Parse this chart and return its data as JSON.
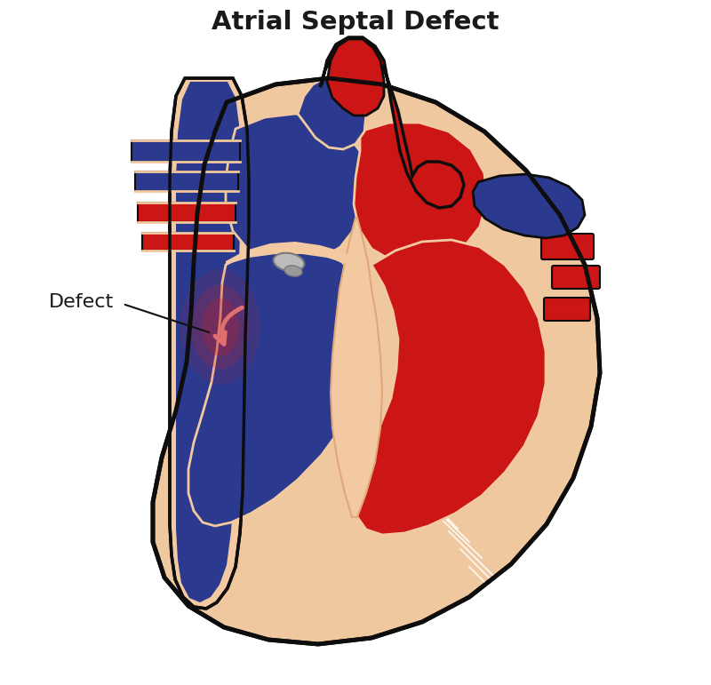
{
  "title": "Atrial Septal Defect",
  "title_fontsize": 21,
  "title_fontweight": "bold",
  "title_color": "#1a1a1a",
  "bg_color": "#ffffff",
  "colors": {
    "dark_blue": "#2B3A8E",
    "medium_blue": "#3D52A0",
    "bright_red": "#CC1515",
    "skin": "#F2C9A0",
    "skin_dark": "#E0A878",
    "outline": "#0D0D0D",
    "gray": "#7A7A7A",
    "light_gray": "#BBBBBB",
    "pink_arrow": "#E08080",
    "white": "#FFFFFF",
    "peach": "#F0C8A0",
    "peach_dark": "#DDAA80"
  },
  "defect_label": "Defect",
  "defect_label_fontsize": 16,
  "defect_label_color": "#1a1a1a"
}
